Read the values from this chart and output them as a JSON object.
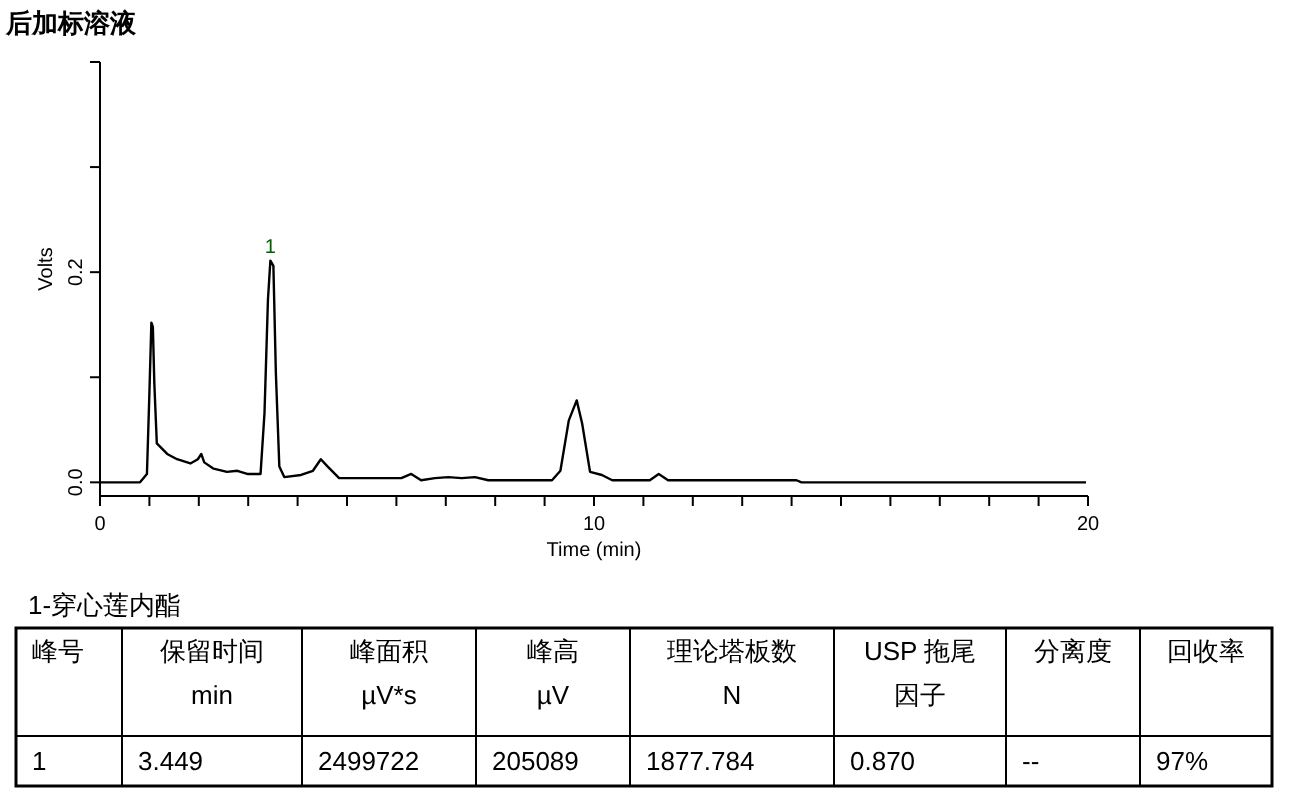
{
  "chart_data": [
    {
      "type": "line",
      "title": "后加标溶液",
      "xlabel": "Time (min)",
      "ylabel": "Volts",
      "xlim": [
        0,
        20
      ],
      "ylim": [
        -0.013,
        0.4
      ],
      "xticks": [
        0,
        {
          "value": 1,
          "label": null
        },
        {
          "value": 2,
          "label": null
        },
        {
          "value": 3,
          "label": null
        },
        {
          "value": 4,
          "label": null
        },
        {
          "value": 5,
          "label": null
        },
        {
          "value": 6,
          "label": null
        },
        {
          "value": 7,
          "label": null
        },
        {
          "value": 8,
          "label": null
        },
        {
          "value": 9,
          "label": null
        },
        10,
        {
          "value": 11,
          "label": null
        },
        {
          "value": 12,
          "label": null
        },
        {
          "value": 13,
          "label": null
        },
        {
          "value": 14,
          "label": null
        },
        {
          "value": 15,
          "label": null
        },
        {
          "value": 16,
          "label": null
        },
        {
          "value": 17,
          "label": null
        },
        {
          "value": 18,
          "label": null
        },
        {
          "value": 19,
          "label": null
        },
        20
      ],
      "yticks": [
        {
          "value": 0,
          "label": "0.0"
        },
        {
          "value": 0.1,
          "label": null
        },
        {
          "value": 0.2,
          "label": "0.2"
        },
        {
          "value": 0.3,
          "label": null
        },
        {
          "value": 0.4,
          "label": null
        }
      ],
      "grid": false,
      "series": [
        {
          "color": "#000000",
          "x": [
            0,
            0.81,
            0.95,
            1.0,
            1.04,
            1.07,
            1.1,
            1.15,
            1.36,
            1.56,
            1.83,
            1.98,
            2.05,
            2.11,
            2.3,
            2.57,
            2.78,
            2.98,
            3.25,
            3.33,
            3.4,
            3.449,
            3.51,
            3.56,
            3.63,
            3.73,
            4.07,
            4.31,
            4.47,
            4.61,
            4.84,
            6.1,
            6.3,
            6.5,
            6.78,
            7.05,
            7.32,
            7.59,
            7.86,
            9.15,
            9.32,
            9.49,
            9.65,
            9.76,
            9.92,
            10.16,
            10.37,
            11.13,
            11.31,
            11.5,
            14.1,
            14.2,
            19.96
          ],
          "values": [
            0,
            0,
            0.008,
            0.085,
            0.152,
            0.148,
            0.094,
            0.037,
            0.027,
            0.022,
            0.018,
            0.022,
            0.027,
            0.019,
            0.013,
            0.01,
            0.011,
            0.008,
            0.008,
            0.066,
            0.174,
            0.211,
            0.206,
            0.104,
            0.015,
            0.005,
            0.007,
            0.011,
            0.022,
            0.015,
            0.004,
            0.004,
            0.008,
            0.002,
            0.004,
            0.005,
            0.004,
            0.005,
            0.002,
            0.002,
            0.011,
            0.059,
            0.078,
            0.056,
            0.01,
            0.007,
            0.002,
            0.002,
            0.008,
            0.002,
            0.002,
            0,
            0
          ]
        }
      ],
      "annotations": [
        {
          "text": "1",
          "x": 3.449,
          "y": 0.211
        }
      ]
    },
    {
      "type": "other",
      "title": "1-穿心莲内酯",
      "annotations": [
        "峰号",
        "保留时间\nmin",
        "峰面积\nµV*s",
        "峰高\nµV",
        "理论塔板数\nN",
        "USP 拖尾因子",
        "分离度",
        "回收率",
        "1",
        "3.449",
        "2499722",
        "205089",
        "1877.784",
        "0.870",
        "--",
        "97%"
      ]
    }
  ]
}
